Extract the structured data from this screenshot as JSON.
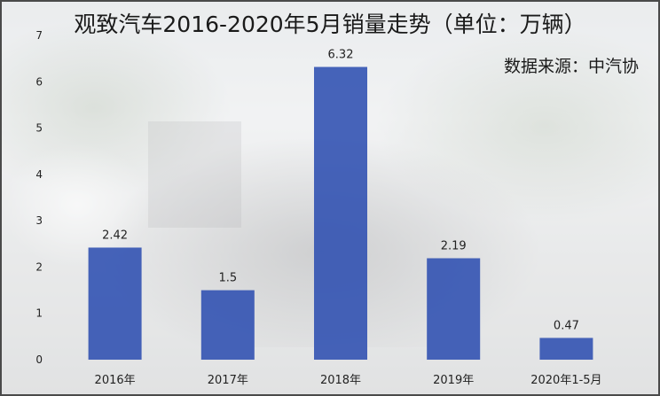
{
  "title": "观致汽车2016-2020年5月销量走势（单位：万辆）",
  "source": "数据来源：中汽协",
  "colors": {
    "bar": "#2e4fb0",
    "bar_top": "#3a5cc0"
  },
  "chart_data": {
    "type": "bar",
    "title": "观致汽车2016-2020年5月销量走势（单位：万辆）",
    "categories": [
      "2016年",
      "2017年",
      "2018年",
      "2019年",
      "2020年1-5月"
    ],
    "values": [
      2.42,
      1.5,
      6.32,
      2.19,
      0.47
    ],
    "value_labels": [
      "2.42",
      "1.5",
      "6.32",
      "2.19",
      "0.47"
    ],
    "yticks": [
      0,
      1,
      2,
      3,
      4,
      5,
      6,
      7
    ],
    "ylim": [
      0,
      7
    ],
    "xlabel": "",
    "ylabel": "",
    "grid": false,
    "legend": "none"
  }
}
